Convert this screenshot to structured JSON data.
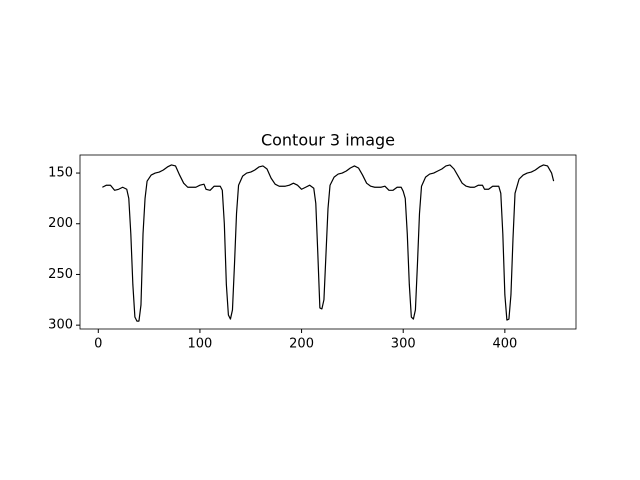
{
  "chart_data": {
    "type": "line",
    "title": "Contour 3 image",
    "color": "#000000",
    "invert_y": true,
    "x": [
      4,
      8,
      12,
      16,
      20,
      24,
      28,
      30,
      32,
      34,
      36,
      38,
      40,
      42,
      44,
      46,
      48,
      52,
      56,
      60,
      64,
      68,
      72,
      76,
      80,
      84,
      88,
      92,
      96,
      100,
      104,
      106,
      110,
      114,
      120,
      122,
      124,
      126,
      128,
      130,
      132,
      134,
      136,
      138,
      142,
      146,
      150,
      154,
      158,
      162,
      166,
      170,
      174,
      178,
      184,
      188,
      192,
      196,
      200,
      204,
      208,
      212,
      214,
      216,
      218,
      220,
      222,
      224,
      226,
      228,
      232,
      236,
      240,
      244,
      248,
      252,
      256,
      260,
      264,
      268,
      272,
      278,
      282,
      286,
      290,
      294,
      298,
      300,
      302,
      304,
      306,
      308,
      310,
      312,
      314,
      316,
      318,
      322,
      326,
      330,
      334,
      338,
      342,
      346,
      350,
      354,
      358,
      362,
      366,
      370,
      374,
      378,
      380,
      384,
      388,
      394,
      396,
      398,
      400,
      402,
      404,
      406,
      408,
      410,
      414,
      418,
      422,
      426,
      430,
      434,
      438,
      442,
      446,
      448
    ],
    "y": [
      164,
      162,
      162,
      167,
      166,
      164,
      166,
      175,
      210,
      260,
      292,
      296,
      296,
      280,
      210,
      175,
      158,
      152,
      150,
      149,
      147,
      144,
      142,
      143,
      152,
      160,
      164,
      164,
      164,
      162,
      161,
      166,
      167,
      163,
      163,
      167,
      200,
      260,
      290,
      294,
      285,
      240,
      190,
      162,
      153,
      150,
      149,
      147,
      144,
      143,
      146,
      155,
      161,
      163,
      163,
      162,
      160,
      162,
      166,
      164,
      162,
      165,
      180,
      230,
      283,
      284,
      275,
      230,
      185,
      162,
      154,
      151,
      150,
      148,
      145,
      143,
      145,
      152,
      160,
      163,
      164,
      164,
      163,
      167,
      167,
      164,
      164,
      168,
      175,
      210,
      260,
      292,
      294,
      285,
      240,
      190,
      163,
      154,
      151,
      150,
      148,
      146,
      143,
      142,
      146,
      153,
      160,
      163,
      164,
      164,
      162,
      162,
      166,
      166,
      163,
      163,
      170,
      210,
      270,
      295,
      294,
      270,
      215,
      170,
      156,
      152,
      150,
      149,
      147,
      144,
      142,
      143,
      150,
      158
    ],
    "xlim": [
      -18,
      470
    ],
    "ylim": [
      132.2,
      303.8
    ],
    "xticks": [
      0,
      100,
      200,
      300,
      400
    ],
    "yticks": [
      150,
      200,
      250,
      300
    ]
  }
}
